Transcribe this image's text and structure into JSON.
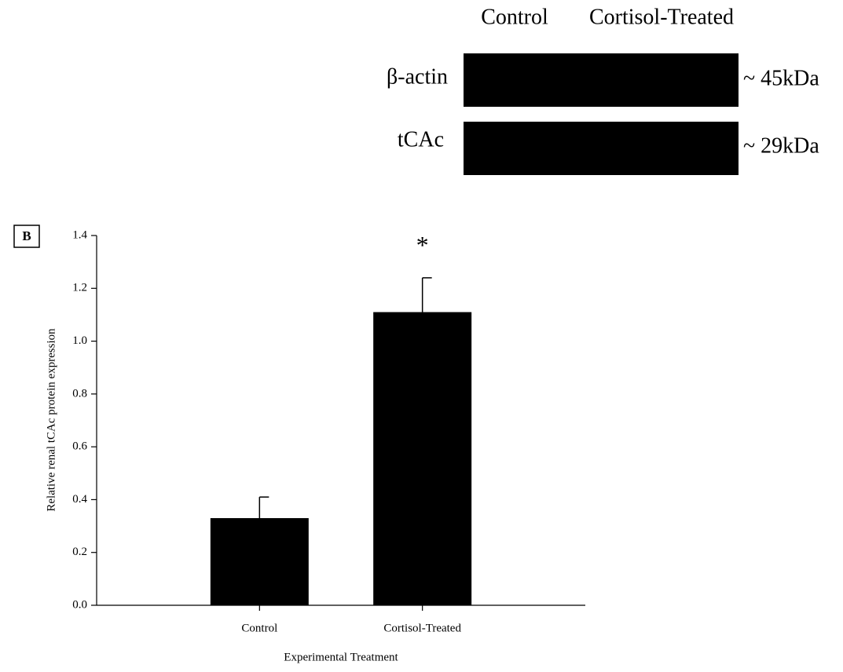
{
  "blot": {
    "lanes": [
      "Control",
      "Cortisol-Treated"
    ],
    "rows": [
      {
        "label": "β-actin",
        "size": "~ 45kDa"
      },
      {
        "label": "tCAc",
        "size": "~ 29kDa"
      }
    ]
  },
  "chart_data": {
    "type": "bar",
    "panel_label": "B",
    "ylabel": "Relative renal tCAc protein expression",
    "xlabel": "Experimental Treatment",
    "categories": [
      "Control",
      "Cortisol-Treated"
    ],
    "values": [
      0.33,
      1.11
    ],
    "errors": [
      0.08,
      0.13
    ],
    "annotations": [
      {
        "category": 1,
        "text": "*"
      }
    ],
    "color": "#000000",
    "ylim": [
      0,
      1.4
    ],
    "yticks": [
      {
        "value": 0,
        "label": "0.0"
      },
      0.2,
      0.4,
      0.6,
      0.8,
      {
        "value": 1,
        "label": "1.0"
      },
      1.2,
      1.4
    ],
    "grid": false
  }
}
